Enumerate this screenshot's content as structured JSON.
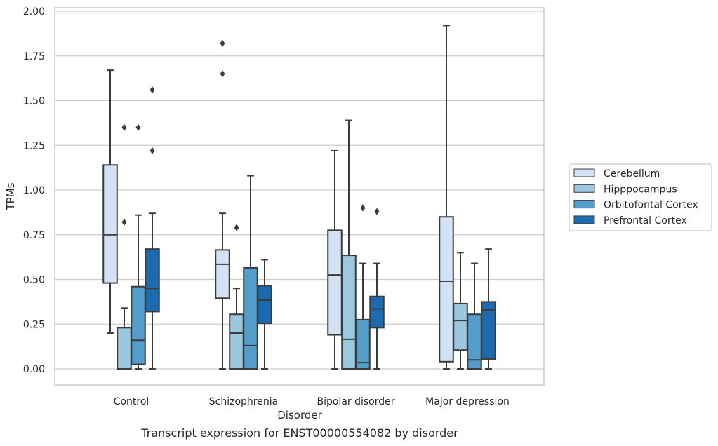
{
  "chart_data": {
    "type": "box",
    "title": "Transcript expression for ENST00000554082 by disorder",
    "xlabel": "Disorder",
    "ylabel": "TPMs",
    "ylim": [
      -0.09,
      2.0
    ],
    "yticks": [
      "0.00",
      "0.25",
      "0.50",
      "0.75",
      "1.00",
      "1.25",
      "1.50",
      "1.75",
      "2.00"
    ],
    "ytick_values": [
      0,
      0.25,
      0.5,
      0.75,
      1.0,
      1.25,
      1.5,
      1.75,
      2.0
    ],
    "grid": "horizontal",
    "legend_position": "right",
    "categories": [
      "Control",
      "Schizophrenia",
      "Bipolar disorder",
      "Major depression"
    ],
    "series": [
      {
        "name": "Cerebellum",
        "color": "#d2e3f3",
        "boxes": [
          {
            "whisker_low": 0.2,
            "q1": 0.48,
            "median": 0.75,
            "q3": 1.14,
            "whisker_high": 1.67,
            "outliers": []
          },
          {
            "whisker_low": 0.0,
            "q1": 0.395,
            "median": 0.585,
            "q3": 0.665,
            "whisker_high": 0.87,
            "outliers": [
              1.65,
              1.82
            ]
          },
          {
            "whisker_low": 0.0,
            "q1": 0.19,
            "median": 0.525,
            "q3": 0.775,
            "whisker_high": 1.22,
            "outliers": []
          },
          {
            "whisker_low": 0.0,
            "q1": 0.04,
            "median": 0.49,
            "q3": 0.85,
            "whisker_high": 1.92,
            "outliers": []
          }
        ]
      },
      {
        "name": "Hipppocampus",
        "color": "#9ac8e0",
        "boxes": [
          {
            "whisker_low": 0.0,
            "q1": 0.0,
            "median": 0.0,
            "q3": 0.23,
            "whisker_high": 0.34,
            "outliers": [
              0.82,
              1.35
            ]
          },
          {
            "whisker_low": 0.0,
            "q1": 0.0,
            "median": 0.2,
            "q3": 0.305,
            "whisker_high": 0.45,
            "outliers": [
              0.79
            ]
          },
          {
            "whisker_low": 0.0,
            "q1": 0.0,
            "median": 0.165,
            "q3": 0.635,
            "whisker_high": 1.39,
            "outliers": []
          },
          {
            "whisker_low": 0.0,
            "q1": 0.105,
            "median": 0.27,
            "q3": 0.365,
            "whisker_high": 0.65,
            "outliers": []
          }
        ]
      },
      {
        "name": "Orbitofontal Cortex",
        "color": "#529dcc",
        "boxes": [
          {
            "whisker_low": 0.0,
            "q1": 0.025,
            "median": 0.16,
            "q3": 0.46,
            "whisker_high": 0.86,
            "outliers": [
              1.35
            ]
          },
          {
            "whisker_low": 0.0,
            "q1": 0.0,
            "median": 0.13,
            "q3": 0.565,
            "whisker_high": 1.08,
            "outliers": []
          },
          {
            "whisker_low": 0.0,
            "q1": 0.0,
            "median": 0.035,
            "q3": 0.275,
            "whisker_high": 0.59,
            "outliers": [
              0.9
            ]
          },
          {
            "whisker_low": 0.0,
            "q1": 0.0,
            "median": 0.05,
            "q3": 0.305,
            "whisker_high": 0.59,
            "outliers": []
          }
        ]
      },
      {
        "name": "Prefrontal Cortex",
        "color": "#1c6aaf",
        "boxes": [
          {
            "whisker_low": 0.0,
            "q1": 0.32,
            "median": 0.45,
            "q3": 0.67,
            "whisker_high": 0.87,
            "outliers": [
              1.22,
              1.56
            ]
          },
          {
            "whisker_low": 0.0,
            "q1": 0.255,
            "median": 0.385,
            "q3": 0.465,
            "whisker_high": 0.61,
            "outliers": []
          },
          {
            "whisker_low": 0.0,
            "q1": 0.23,
            "median": 0.335,
            "q3": 0.405,
            "whisker_high": 0.59,
            "outliers": [
              0.88
            ]
          },
          {
            "whisker_low": 0.0,
            "q1": 0.055,
            "median": 0.33,
            "q3": 0.375,
            "whisker_high": 0.67,
            "outliers": []
          }
        ]
      }
    ]
  }
}
